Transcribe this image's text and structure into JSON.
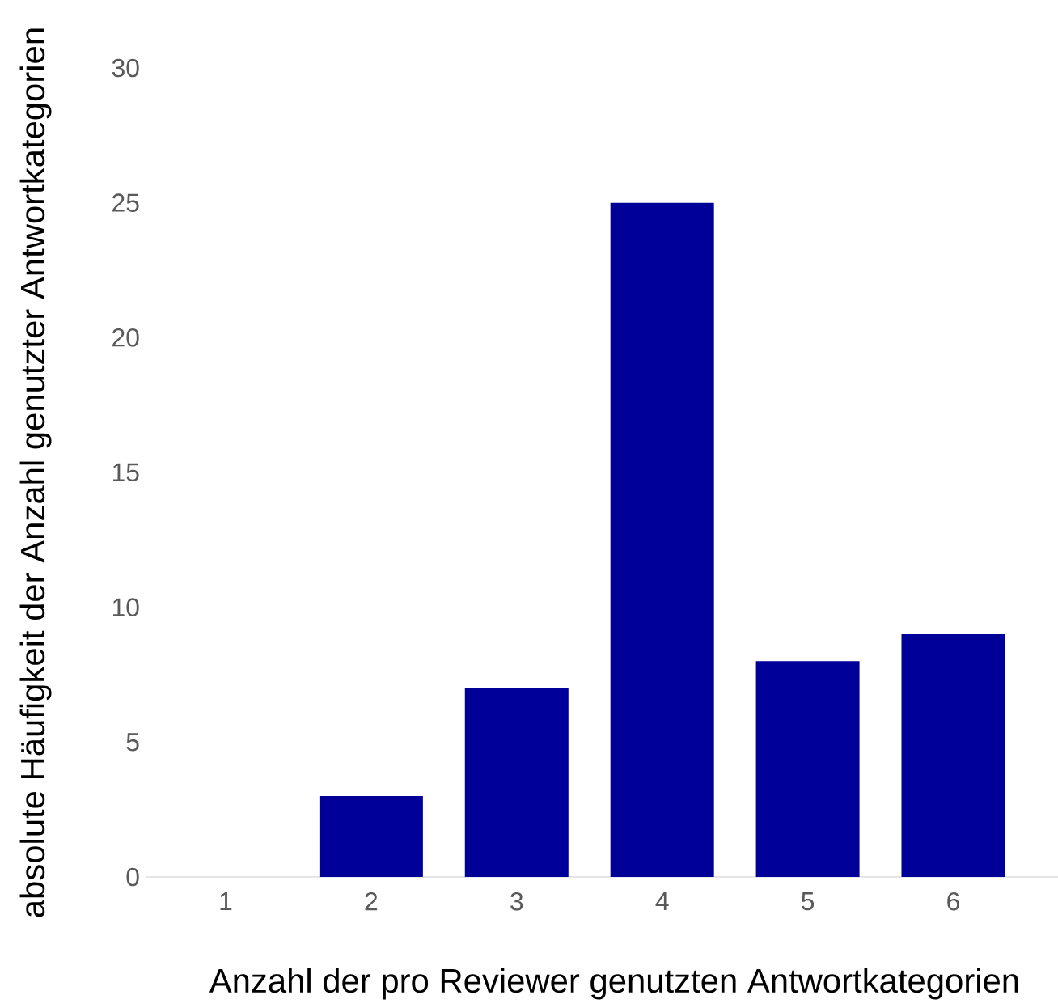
{
  "chart_data": {
    "type": "bar",
    "categories": [
      "1",
      "2",
      "3",
      "4",
      "5",
      "6"
    ],
    "values": [
      0,
      3,
      7,
      25,
      8,
      9
    ],
    "color": "#000099",
    "xlabel": "Anzahl der pro Reviewer genutzten Antwortkategorien",
    "ylabel": "absolute Häufigkeit der Anzahl genutzter Antwortkategorien",
    "ylim": [
      0,
      30
    ],
    "yticks": [
      0,
      5,
      10,
      15,
      20,
      25,
      30
    ]
  }
}
